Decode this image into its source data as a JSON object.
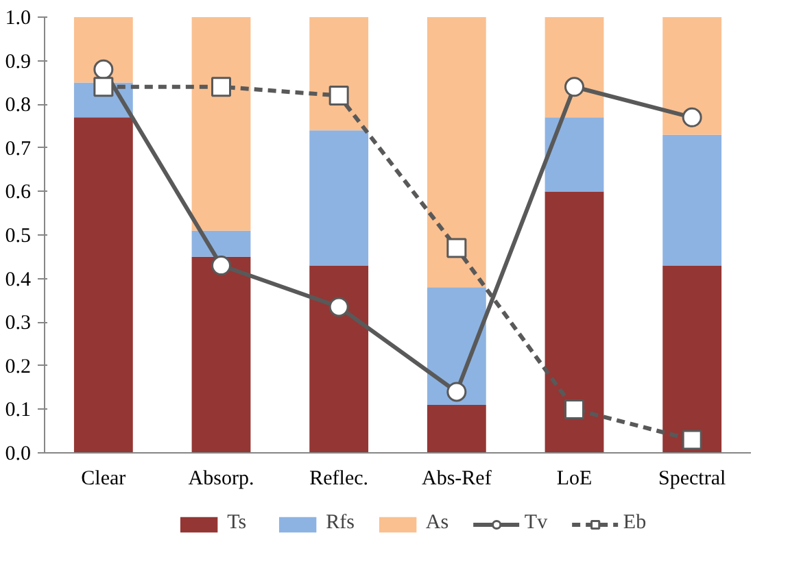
{
  "chart_data": {
    "type": "bar",
    "stacked": true,
    "categories": [
      "Clear",
      "Absorp.",
      "Reflec.",
      "Abs-Ref",
      "LoE",
      "Spectral"
    ],
    "series": [
      {
        "name": "Ts",
        "color": "#943634",
        "values": [
          0.77,
          0.45,
          0.43,
          0.11,
          0.6,
          0.43
        ]
      },
      {
        "name": "Rfs",
        "color": "#8db3e2",
        "values": [
          0.08,
          0.06,
          0.31,
          0.27,
          0.17,
          0.3
        ]
      },
      {
        "name": "As",
        "color": "#fac090",
        "values": [
          0.15,
          0.49,
          0.26,
          0.62,
          0.23,
          0.27
        ]
      },
      {
        "name": "Tv",
        "type": "line",
        "color": "#595959",
        "marker": "circle",
        "line_style": "solid",
        "values": [
          0.88,
          0.43,
          0.335,
          0.14,
          0.84,
          0.77
        ]
      },
      {
        "name": "Eb",
        "type": "line",
        "color": "#595959",
        "marker": "square",
        "line_style": "dashed",
        "values": [
          0.84,
          0.84,
          0.82,
          0.47,
          0.1,
          0.03
        ]
      }
    ],
    "ylim": [
      0,
      1
    ],
    "yticks": [
      {
        "value": 0,
        "label": "0.0"
      },
      {
        "value": 0.1,
        "label": "0.1"
      },
      {
        "value": 0.2,
        "label": "0.2"
      },
      {
        "value": 0.3,
        "label": "0.3"
      },
      {
        "value": 0.4,
        "label": "0.4"
      },
      {
        "value": 0.5,
        "label": "0.5"
      },
      {
        "value": 0.6,
        "label": "0.6"
      },
      {
        "value": 0.7,
        "label": "0.7"
      },
      {
        "value": 0.8,
        "label": "0.8"
      },
      {
        "value": 0.9,
        "label": "0.9"
      },
      {
        "value": 1,
        "label": "1.0"
      }
    ],
    "grid": false,
    "legend": "bottom"
  }
}
